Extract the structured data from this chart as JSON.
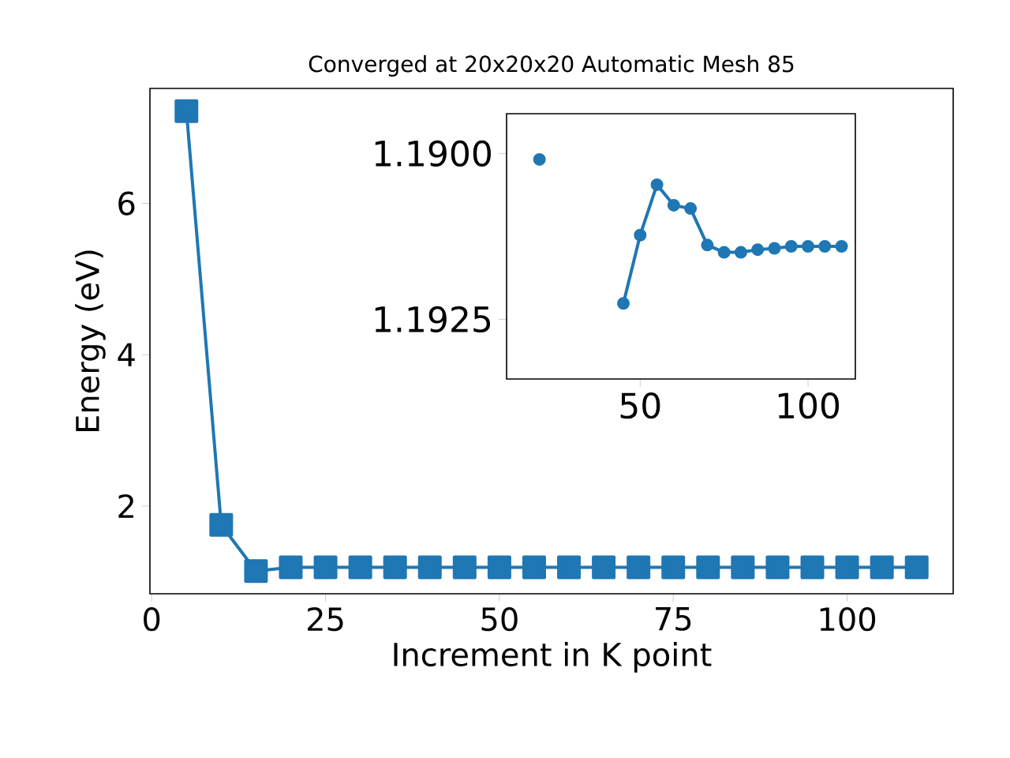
{
  "chart_data": [
    {
      "type": "line",
      "title": "Converged at 20x20x20 Automatic Mesh 85",
      "xlabel": "Increment in K point",
      "ylabel": "Energy (eV)",
      "color": "#1f77b4",
      "marker": "square",
      "x": [
        5,
        10,
        15,
        20,
        25,
        30,
        35,
        40,
        45,
        50,
        55,
        60,
        65,
        70,
        75,
        80,
        85,
        90,
        95,
        100,
        105,
        110
      ],
      "values": [
        7.22,
        1.75,
        1.14,
        1.19,
        1.19,
        1.19,
        1.19,
        1.19,
        1.19,
        1.19,
        1.19,
        1.19,
        1.19,
        1.19,
        1.19,
        1.19,
        1.19,
        1.19,
        1.19,
        1.19,
        1.19,
        1.19
      ],
      "xlim": [
        -0.25,
        115.25
      ],
      "ylim": [
        0.84,
        7.52
      ],
      "xticks": [
        0,
        25,
        50,
        75,
        100
      ],
      "yticks": [
        2,
        4,
        6
      ]
    },
    {
      "type": "line",
      "color": "#1f77b4",
      "marker": "circle",
      "x": [
        20,
        25,
        30,
        35,
        40,
        45,
        50,
        55,
        60,
        65,
        70,
        75,
        80,
        85,
        90,
        95,
        100,
        105,
        110
      ],
      "values": [
        1.19009,
        null,
        null,
        null,
        null,
        1.19226,
        1.19123,
        1.19047,
        1.19078,
        1.19083,
        1.19138,
        1.19149,
        1.19149,
        1.19145,
        1.19143,
        1.1914,
        1.1914,
        1.1914,
        1.1914
      ],
      "xlim": [
        10.2,
        114.1
      ],
      "ylim": [
        1.1934,
        1.1894
      ],
      "xticks": [
        50,
        100
      ],
      "yticks": [
        {
          "value": 1.19,
          "label": "1.1900"
        },
        {
          "value": 1.1925,
          "label": "1.1925"
        }
      ]
    }
  ]
}
